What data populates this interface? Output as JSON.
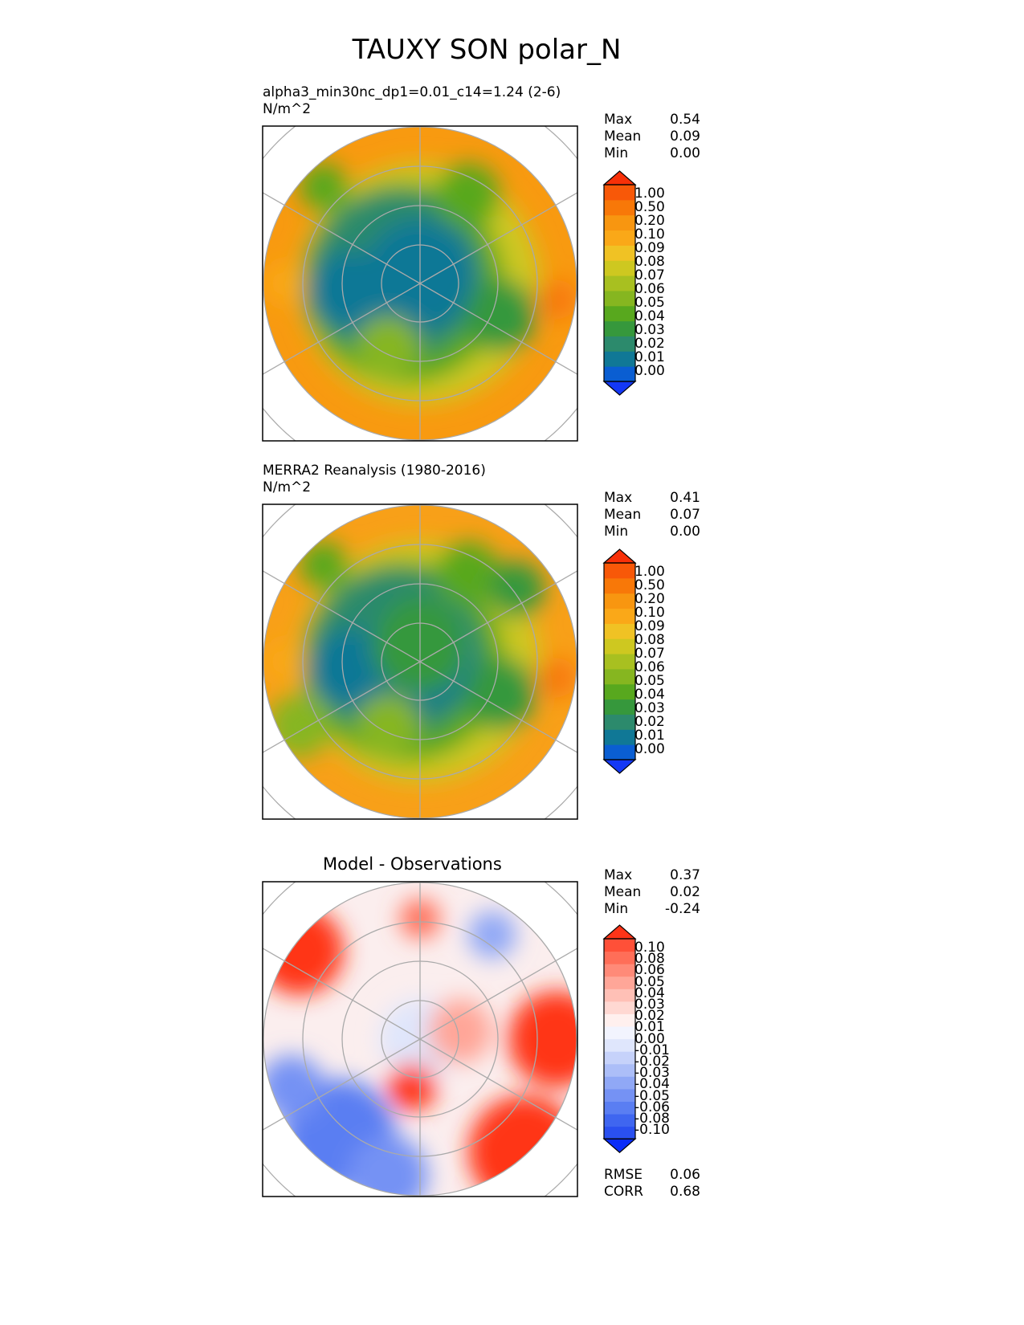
{
  "title": "TAUXY SON polar_N",
  "chart_data": [
    {
      "type": "heatmap",
      "projection": "north-polar-stereographic",
      "title": "alpha3_min30nc_dp1=0.01_c14=1.24 (2-6)",
      "units": "N/m^2",
      "stats": {
        "max_label": "Max",
        "max": "0.54",
        "mean_label": "Mean",
        "mean": "0.09",
        "min_label": "Min",
        "min": "0.00"
      },
      "colorbar": {
        "labels": [
          "1.00",
          "0.50",
          "0.20",
          "0.10",
          "0.09",
          "0.08",
          "0.07",
          "0.06",
          "0.05",
          "0.04",
          "0.03",
          "0.02",
          "0.01",
          "0.00"
        ],
        "colors": [
          "#1438f5",
          "#0a5ed2",
          "#107896",
          "#2c8a6c",
          "#36983c",
          "#58a81e",
          "#86b620",
          "#a8c020",
          "#cec820",
          "#f0c224",
          "#faa818",
          "#f89610",
          "#f87808",
          "#f85808",
          "#f83008"
        ]
      },
      "pattern": "model"
    },
    {
      "type": "heatmap",
      "projection": "north-polar-stereographic",
      "title": "MERRA2 Reanalysis (1980-2016)",
      "units": "N/m^2",
      "stats": {
        "max_label": "Max",
        "max": "0.41",
        "mean_label": "Mean",
        "mean": "0.07",
        "min_label": "Min",
        "min": "0.00"
      },
      "colorbar": {
        "labels": [
          "1.00",
          "0.50",
          "0.20",
          "0.10",
          "0.09",
          "0.08",
          "0.07",
          "0.06",
          "0.05",
          "0.04",
          "0.03",
          "0.02",
          "0.01",
          "0.00"
        ],
        "colors": [
          "#1438f5",
          "#0a5ed2",
          "#107896",
          "#2c8a6c",
          "#36983c",
          "#58a81e",
          "#86b620",
          "#a8c020",
          "#cec820",
          "#f0c224",
          "#faa818",
          "#f89610",
          "#f87808",
          "#f85808",
          "#f83008"
        ]
      },
      "pattern": "obs"
    },
    {
      "type": "heatmap",
      "projection": "north-polar-stereographic",
      "title": "Model - Observations",
      "units": "",
      "stats": {
        "max_label": "Max",
        "max": "0.37",
        "mean_label": "Mean",
        "mean": "0.02",
        "min_label": "Min",
        "min": "-0.24",
        "rmse_label": "RMSE",
        "rmse": "0.06",
        "corr_label": "CORR",
        "corr": "0.68"
      },
      "colorbar": {
        "labels": [
          "0.10",
          "0.08",
          "0.06",
          "0.05",
          "0.04",
          "0.03",
          "0.02",
          "0.01",
          "0.00",
          "-0.01",
          "-0.02",
          "-0.03",
          "-0.04",
          "-0.05",
          "-0.06",
          "-0.08",
          "-0.10"
        ],
        "colors": [
          "#0a2cf8",
          "#2a50f0",
          "#3f66f0",
          "#5a7ef2",
          "#7592f4",
          "#90a8f6",
          "#acbef8",
          "#c6d2fa",
          "#dfe6fc",
          "#f2f4fe",
          "#fff0ee",
          "#ffd8d2",
          "#ffc0b6",
          "#ffa698",
          "#ff8a78",
          "#ff6e58",
          "#ff5038",
          "#ff3418"
        ]
      },
      "pattern": "diff"
    }
  ]
}
